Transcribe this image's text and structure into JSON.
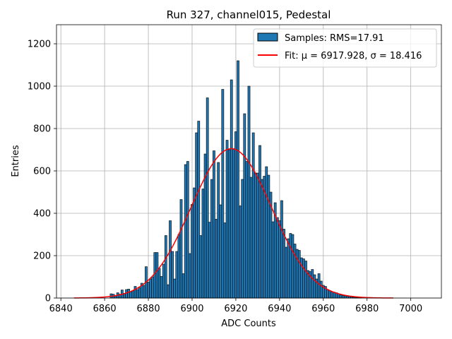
{
  "chart_data": {
    "type": "bar",
    "title": "Run 327, channel015, Pedestal",
    "xlabel": "ADC Counts",
    "ylabel": "Entries",
    "xlim": [
      6838,
      7014
    ],
    "ylim": [
      0,
      1290
    ],
    "xticks": [
      6840,
      6860,
      6880,
      6900,
      6920,
      6940,
      6960,
      6980,
      7000
    ],
    "yticks": [
      0,
      200,
      400,
      600,
      800,
      1000,
      1200
    ],
    "grid": true,
    "legend_position": "top-right",
    "colors": {
      "bars": "#1f77b4",
      "bar_edge": "#000000",
      "fit": "#ff0000",
      "grid": "#b0b0b0"
    },
    "series": [
      {
        "name": "Samples: RMS=17.91",
        "kind": "histogram",
        "bin_width": 1,
        "x": [
          6863,
          6864,
          6865,
          6866,
          6867,
          6868,
          6869,
          6870,
          6871,
          6872,
          6873,
          6874,
          6875,
          6876,
          6877,
          6878,
          6879,
          6880,
          6881,
          6882,
          6883,
          6884,
          6885,
          6886,
          6887,
          6888,
          6889,
          6890,
          6891,
          6892,
          6893,
          6894,
          6895,
          6896,
          6897,
          6898,
          6899,
          6900,
          6901,
          6902,
          6903,
          6904,
          6905,
          6906,
          6907,
          6908,
          6909,
          6910,
          6911,
          6912,
          6913,
          6914,
          6915,
          6916,
          6917,
          6918,
          6919,
          6920,
          6921,
          6922,
          6923,
          6924,
          6925,
          6926,
          6927,
          6928,
          6929,
          6930,
          6931,
          6932,
          6933,
          6934,
          6935,
          6936,
          6937,
          6938,
          6939,
          6940,
          6941,
          6942,
          6943,
          6944,
          6945,
          6946,
          6947,
          6948,
          6949,
          6950,
          6951,
          6952,
          6953,
          6954,
          6955,
          6956,
          6957,
          6958,
          6959,
          6960,
          6961,
          6962,
          6963,
          6964,
          6965,
          6966,
          6967,
          6968,
          6969,
          6970,
          6971,
          6972,
          6973,
          6974,
          6975,
          6976,
          6977
        ],
        "values": [
          20,
          18,
          10,
          25,
          18,
          38,
          22,
          40,
          42,
          30,
          35,
          55,
          40,
          48,
          70,
          60,
          148,
          75,
          90,
          100,
          215,
          215,
          140,
          102,
          160,
          295,
          63,
          365,
          220,
          90,
          220,
          300,
          465,
          115,
          630,
          645,
          210,
          442,
          520,
          780,
          835,
          295,
          515,
          680,
          945,
          358,
          560,
          695,
          372,
          640,
          440,
          985,
          355,
          745,
          700,
          1030,
          705,
          785,
          1120,
          435,
          560,
          870,
          645,
          1000,
          570,
          780,
          590,
          590,
          720,
          560,
          575,
          620,
          580,
          500,
          360,
          450,
          380,
          365,
          460,
          325,
          240,
          280,
          305,
          300,
          255,
          230,
          225,
          190,
          185,
          175,
          130,
          125,
          135,
          110,
          90,
          115,
          80,
          60,
          55,
          40,
          35,
          30,
          28,
          25,
          20,
          15,
          12,
          10,
          8,
          7,
          5,
          4,
          3,
          2,
          1
        ]
      },
      {
        "name": "Fit: $\\mu$ = 6917.928, $\\sigma$ = 18.416",
        "legend_text": "Fit: μ = 6917.928, σ = 18.416",
        "kind": "gaussian_fit",
        "mu": 6917.928,
        "sigma": 18.416,
        "peak": 705,
        "x_range": [
          6846,
          6992
        ]
      }
    ]
  }
}
